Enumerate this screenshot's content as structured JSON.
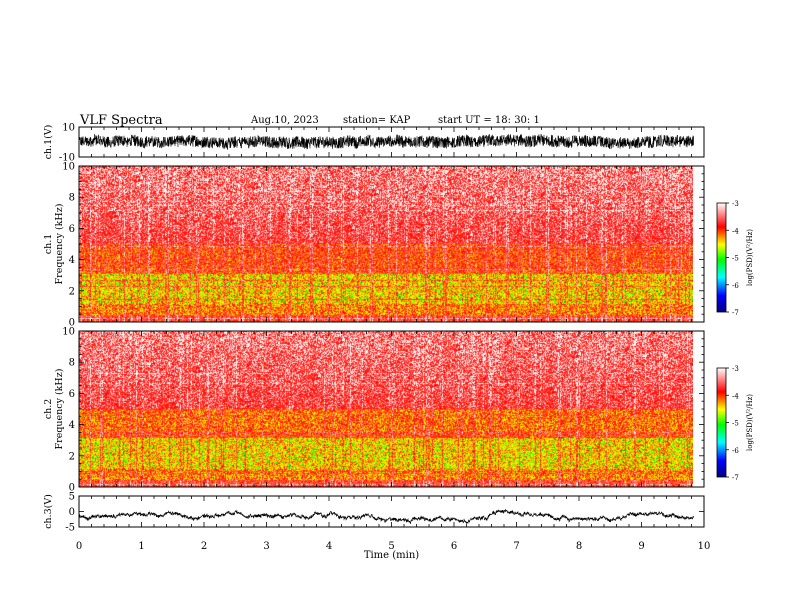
{
  "header": {
    "title": "VLF Spectra",
    "date": "Aug.10, 2023",
    "station": "station= KAP",
    "start": "start  UT  =   18: 30: 1"
  },
  "chart_data": [
    {
      "type": "line",
      "panel": "ch1-waveform",
      "ylabel": "ch.1(V)",
      "ylim": [
        -10,
        10
      ],
      "y_tick_labels": [
        "10",
        "-10"
      ],
      "xlim": [
        0,
        10
      ],
      "x_data_extent": [
        0,
        9.83
      ],
      "series": [
        {
          "description_none": true,
          "approx_mean": 0,
          "approx_range": [
            -5,
            5
          ]
        }
      ]
    },
    {
      "type": "heatmap",
      "panel": "ch1-spectrogram",
      "ylabel_lines": [
        "ch.1",
        "Frequency  (kHz)"
      ],
      "ylim": [
        0,
        10
      ],
      "y_tick_labels": [
        "0",
        "2",
        "4",
        "6",
        "8",
        "10"
      ],
      "xlim": [
        0,
        10
      ],
      "x_data_extent": [
        0,
        9.83
      ],
      "colorbar": {
        "label": "log(PSD)(V²/Hz)",
        "range": [
          -7,
          -3
        ],
        "tick_labels": [
          "-3",
          "-4",
          "-5",
          "-6",
          "-7"
        ]
      }
    },
    {
      "type": "heatmap",
      "panel": "ch2-spectrogram",
      "ylabel_lines": [
        "ch.2",
        "Frequency  (kHz)"
      ],
      "ylim": [
        0,
        10
      ],
      "y_tick_labels": [
        "0",
        "2",
        "4",
        "6",
        "8",
        "10"
      ],
      "xlim": [
        0,
        10
      ],
      "x_data_extent": [
        0,
        9.83
      ],
      "colorbar": {
        "label": "log(PSD)(V²/Hz)",
        "range": [
          -7,
          -3
        ],
        "tick_labels": [
          "-3",
          "-4",
          "-5",
          "-6",
          "-7"
        ]
      }
    },
    {
      "type": "line",
      "panel": "ch3-waveform",
      "ylabel": "ch.3(V)",
      "ylim": [
        -5,
        5
      ],
      "y_tick_labels": [
        "5",
        "0",
        "-5"
      ],
      "xlim": [
        0,
        10
      ],
      "x_data_extent": [
        0,
        9.83
      ],
      "xlabel": "Time  (min)",
      "x_tick_labels": [
        "0",
        "1",
        "2",
        "3",
        "4",
        "5",
        "6",
        "7",
        "8",
        "9",
        "10"
      ],
      "series": [
        {
          "approx_mean": -1.6,
          "approx_range": [
            -2.2,
            -1.0
          ]
        }
      ]
    }
  ],
  "colors": {
    "colormap": [
      "#000080",
      "#0000ff",
      "#00ffff",
      "#00ff00",
      "#ffff00",
      "#ff0000",
      "#ffffff"
    ]
  }
}
